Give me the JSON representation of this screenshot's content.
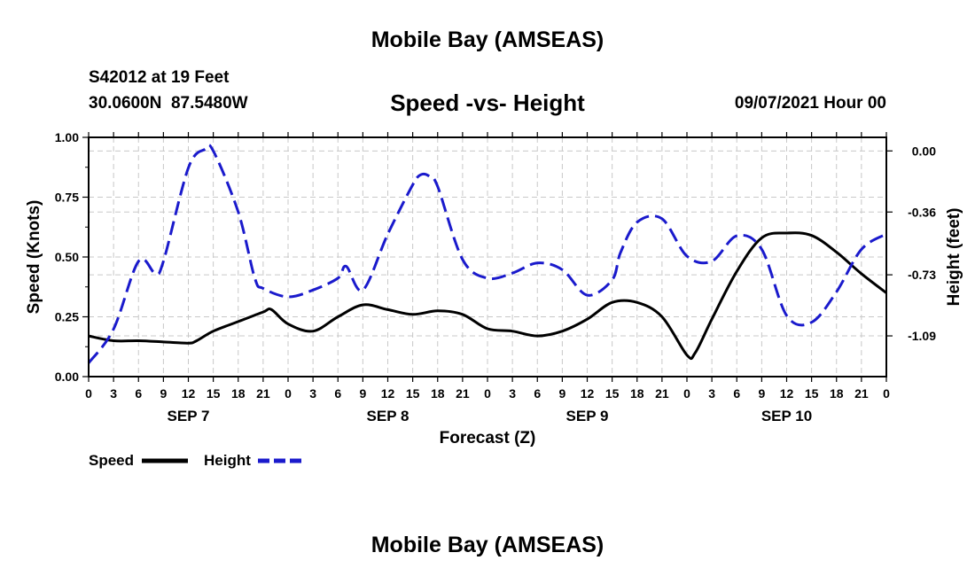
{
  "header": {
    "title_top": "Mobile Bay (AMSEAS)",
    "station": "S42012 at 19 Feet",
    "coords": "30.0600N  87.5480W",
    "subtitle": "Speed -vs- Height",
    "datetime": "09/07/2021 Hour 00",
    "title_bottom": "Mobile Bay (AMSEAS)"
  },
  "legend": {
    "speed_label": "Speed",
    "height_label": "Height"
  },
  "colors": {
    "speed": "#000000",
    "height": "#1a1acc",
    "grid": "#c8c8c8"
  },
  "chart_data": {
    "type": "line",
    "title": "Speed -vs- Height",
    "xlabel": "Forecast (Z)",
    "ylabel_left": "Speed (Knots)",
    "ylabel_right": "Height (feet)",
    "x_unit": "hours from 09/07/2021 00Z",
    "xlim": [
      0,
      96
    ],
    "x_ticks": [
      0,
      3,
      6,
      9,
      12,
      15,
      18,
      21,
      24,
      27,
      30,
      33,
      36,
      39,
      42,
      45,
      48,
      51,
      54,
      57,
      60,
      63,
      66,
      69,
      72,
      75,
      78,
      81,
      84,
      87,
      90,
      93,
      96
    ],
    "x_tick_labels": [
      "0",
      "3",
      "6",
      "9",
      "12",
      "15",
      "18",
      "21",
      "0",
      "3",
      "6",
      "9",
      "12",
      "15",
      "18",
      "21",
      "0",
      "3",
      "6",
      "9",
      "12",
      "15",
      "18",
      "21",
      "0",
      "3",
      "6",
      "9",
      "12",
      "15",
      "18",
      "21",
      "0"
    ],
    "day_labels": [
      {
        "label": "SEP 7",
        "x": 12
      },
      {
        "label": "SEP 8",
        "x": 36
      },
      {
        "label": "SEP 9",
        "x": 60
      },
      {
        "label": "SEP 10",
        "x": 84
      }
    ],
    "ylim_left": [
      0,
      1
    ],
    "y_ticks_left": [
      0,
      0.25,
      0.5,
      0.75,
      1.0
    ],
    "y_tick_labels_left": [
      "0.00",
      "0.25",
      "0.50",
      "0.75",
      "1.00"
    ],
    "ylim_right": [
      -1.33,
      0.08
    ],
    "y_ticks_right": [
      0.0,
      -0.36,
      -0.73,
      -1.09
    ],
    "y_tick_labels_right": [
      "0.00",
      "-0.36",
      "-0.73",
      "-1.09"
    ],
    "series": [
      {
        "name": "Speed",
        "axis": "left",
        "style": "solid",
        "x": [
          0,
          3,
          6,
          9,
          12,
          13,
          15,
          18,
          21,
          22,
          24,
          27,
          30,
          33,
          36,
          39,
          42,
          45,
          48,
          51,
          54,
          57,
          60,
          63,
          66,
          69,
          72,
          73,
          75,
          78,
          81,
          84,
          87,
          90,
          93,
          96
        ],
        "values": [
          0.17,
          0.15,
          0.15,
          0.145,
          0.14,
          0.15,
          0.19,
          0.23,
          0.27,
          0.28,
          0.22,
          0.19,
          0.25,
          0.3,
          0.28,
          0.26,
          0.275,
          0.26,
          0.2,
          0.19,
          0.17,
          0.19,
          0.24,
          0.31,
          0.31,
          0.25,
          0.09,
          0.1,
          0.24,
          0.44,
          0.58,
          0.6,
          0.59,
          0.52,
          0.43,
          0.35
        ]
      },
      {
        "name": "Height",
        "axis": "right",
        "style": "dashed",
        "x": [
          0,
          3,
          6,
          8,
          9,
          12,
          14,
          15,
          18,
          20,
          21,
          24,
          27,
          30,
          31,
          33,
          36,
          39,
          40,
          41,
          42,
          45,
          48,
          51,
          54,
          57,
          60,
          63,
          64,
          66,
          69,
          72,
          75,
          78,
          81,
          84,
          87,
          90,
          93,
          96
        ],
        "values": [
          -1.25,
          -1.05,
          -0.65,
          -0.72,
          -0.65,
          -0.1,
          0.01,
          0.0,
          -0.36,
          -0.75,
          -0.81,
          -0.86,
          -0.82,
          -0.75,
          -0.68,
          -0.82,
          -0.49,
          -0.2,
          -0.14,
          -0.15,
          -0.21,
          -0.64,
          -0.75,
          -0.72,
          -0.66,
          -0.7,
          -0.85,
          -0.76,
          -0.6,
          -0.42,
          -0.4,
          -0.62,
          -0.65,
          -0.5,
          -0.58,
          -0.97,
          -1.01,
          -0.83,
          -0.58,
          -0.49
        ]
      }
    ]
  }
}
